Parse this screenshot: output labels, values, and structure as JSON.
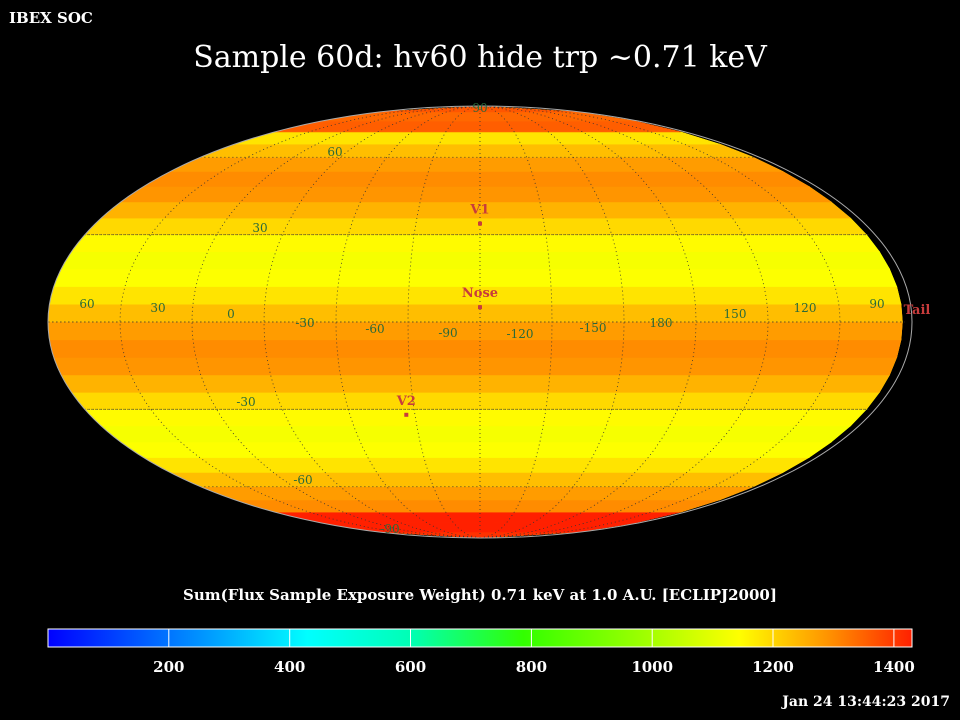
{
  "header": {
    "org": "IBEX SOC"
  },
  "title": "Sample 60d: hv60 hide trp ~0.71 keV",
  "colorbar": {
    "label": "Sum(Flux Sample Exposure Weight)  0.71 keV at 1.0 A.U. [ECLIPJ2000]",
    "ticks": [
      "200",
      "400",
      "600",
      "800",
      "1000",
      "1200",
      "1400"
    ],
    "min": 0,
    "max": 1430
  },
  "timestamp": "Jan 24 13:44:23 2017",
  "map": {
    "projection": "mollweide",
    "frame": "ECLIPJ2000",
    "center_longitude": 255,
    "lat_labels": [
      "90",
      "60",
      "30",
      "-30",
      "-60",
      "-90"
    ],
    "lon_labels": [
      "60",
      "30",
      "0",
      "-30",
      "-60",
      "-90",
      "-120",
      "-150",
      "180",
      "150",
      "120",
      "90"
    ],
    "markers": [
      {
        "label": "V1",
        "lon": 255,
        "lat": 34,
        "color": "#c83c3c"
      },
      {
        "label": "Nose",
        "lon": 255,
        "lat": 5,
        "color": "#c83c3c"
      },
      {
        "label": "V2",
        "lon": 289,
        "lat": -32,
        "color": "#c83c3c"
      },
      {
        "label": "Tail",
        "lon": 75,
        "lat": 5,
        "color": "#c83c3c"
      }
    ]
  }
}
